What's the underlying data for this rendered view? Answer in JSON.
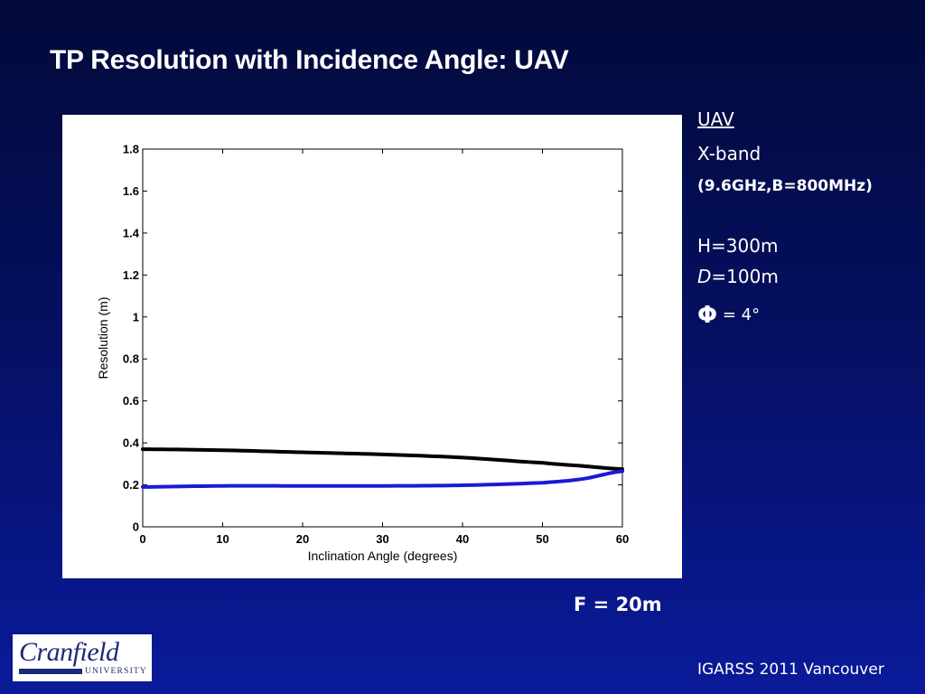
{
  "slide": {
    "title": "TP Resolution with Incidence Angle: UAV",
    "footer": "IGARSS 2011 Vancouver",
    "f_label": "F = 20m"
  },
  "info": {
    "uav": "UAV",
    "band": "X-band",
    "freq": "(9.6GHz,B=800MHz)",
    "h": "H=300m",
    "d_sym": "D",
    "d_val": "=100m",
    "phi_sym": "Φ",
    "phi_val": " = 4°"
  },
  "logo": {
    "name": "Cranfield",
    "sub": "UNIVERSITY"
  },
  "colors": {
    "background_top": "#020a3a",
    "background_bottom": "#0a1a9a",
    "series_black": "#000000",
    "series_blue": "#1a1ad8"
  },
  "chart_data": {
    "type": "line",
    "title": "",
    "xlabel": "Inclination Angle (degrees)",
    "ylabel": "Resolution (m)",
    "xlim": [
      0,
      60
    ],
    "ylim": [
      0,
      1.8
    ],
    "xticks": [
      0,
      10,
      20,
      30,
      40,
      50,
      60
    ],
    "yticks": [
      0,
      0.2,
      0.4,
      0.6,
      0.8,
      1,
      1.2,
      1.4,
      1.6,
      1.8
    ],
    "ytick_labels": [
      "0",
      "0.2",
      "0.4",
      "0.6",
      "0.8",
      "1",
      "1.2",
      "1.4",
      "1.6",
      "1.8"
    ],
    "grid": false,
    "x": [
      0,
      10,
      20,
      30,
      40,
      50,
      55,
      60
    ],
    "series": [
      {
        "color": "#000000",
        "values": [
          0.37,
          0.365,
          0.355,
          0.345,
          0.33,
          0.305,
          0.29,
          0.275
        ]
      },
      {
        "color": "#1a1ad8",
        "values": [
          0.19,
          0.195,
          0.195,
          0.195,
          0.198,
          0.21,
          0.228,
          0.265
        ]
      }
    ]
  }
}
